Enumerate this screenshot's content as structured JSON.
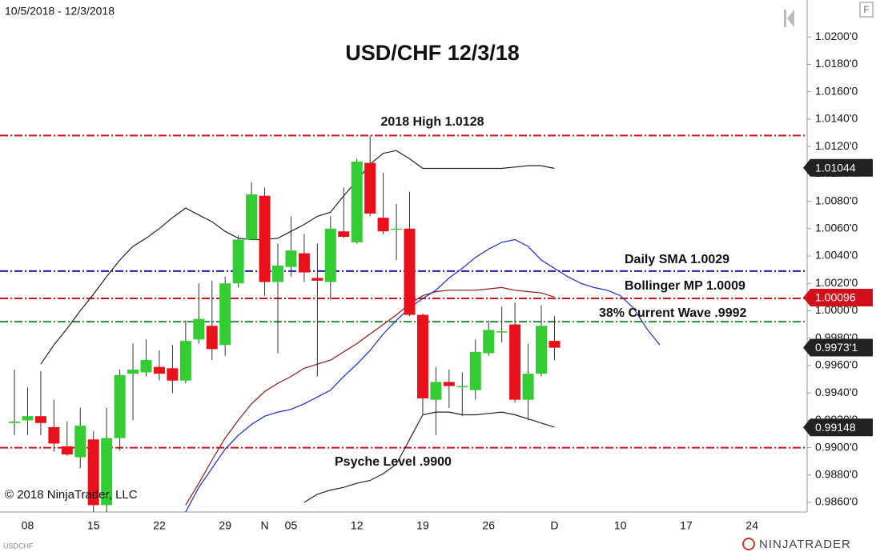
{
  "chart_data": {
    "type": "candlestick",
    "date_range": "10/5/2018 - 12/3/2018",
    "title": "USD/CHF 12/3/18",
    "copyright": "© 2018 NinjaTrader, LLC",
    "instrument": "USDCHF",
    "brand": "NINJATRADER",
    "panel_button": "F",
    "up_color": "#33cc33",
    "down_color": "#e8101a",
    "ylim": [
      0.9853,
      1.0227
    ],
    "yticks": [
      {
        "value": 0.986,
        "label": "0.9860'0"
      },
      {
        "value": 0.988,
        "label": "0.9880'0"
      },
      {
        "value": 0.99,
        "label": "0.9900'0"
      },
      {
        "value": 0.992,
        "label": "0.9920'0"
      },
      {
        "value": 0.994,
        "label": "0.9940'0"
      },
      {
        "value": 0.996,
        "label": "0.9960'0"
      },
      {
        "value": 0.998,
        "label": "0.9980'0"
      },
      {
        "value": 1.0,
        "label": "1.0000'0"
      },
      {
        "value": 1.002,
        "label": "1.0020'0"
      },
      {
        "value": 1.004,
        "label": "1.0040'0"
      },
      {
        "value": 1.006,
        "label": "1.0060'0"
      },
      {
        "value": 1.008,
        "label": "1.0080'0"
      },
      {
        "value": 1.01,
        "label": "1.0100'0"
      },
      {
        "value": 1.012,
        "label": "1.0120'0"
      },
      {
        "value": 1.014,
        "label": "1.0140'0"
      },
      {
        "value": 1.016,
        "label": "1.0160'0"
      },
      {
        "value": 1.018,
        "label": "1.0180'0"
      },
      {
        "value": 1.02,
        "label": "1.0200'0"
      }
    ],
    "categories": [
      null,
      "08",
      null,
      null,
      null,
      null,
      "15",
      null,
      null,
      null,
      null,
      "22",
      null,
      null,
      null,
      null,
      "29",
      null,
      null,
      "N",
      null,
      "05",
      null,
      null,
      null,
      null,
      "12",
      null,
      null,
      null,
      null,
      "19",
      null,
      null,
      null,
      null,
      "26",
      null,
      null,
      null,
      null,
      "D",
      null,
      null,
      null,
      null,
      "10",
      null,
      null,
      null,
      null,
      "17",
      null,
      null,
      null,
      null,
      "24",
      null,
      null,
      null,
      null
    ],
    "open": [
      0.9918,
      0.992,
      0.9923,
      0.9915,
      0.9901,
      0.9893,
      0.9906,
      0.9858,
      0.9907,
      0.9954,
      0.9955,
      0.9959,
      0.9958,
      0.9949,
      0.9979,
      0.9989,
      0.9975,
      1.002,
      1.0052,
      1.0084,
      1.0021,
      1.0032,
      1.0042,
      1.0024,
      1.0021,
      1.0058,
      1.005,
      1.0108,
      1.0068,
      1.006,
      1.006,
      0.9997,
      0.9935,
      0.9948,
      0.9945,
      0.9942,
      0.9969,
      0.9985,
      0.999,
      0.9935,
      0.9954,
      0.9978,
      null,
      null,
      null,
      null,
      null,
      null,
      null,
      null,
      null,
      null,
      null,
      null,
      null,
      null,
      null,
      null,
      null,
      null,
      null
    ],
    "high": [
      0.9957,
      0.9944,
      0.9956,
      0.9935,
      0.9919,
      0.9929,
      0.9912,
      0.9929,
      0.9957,
      0.9976,
      0.9979,
      0.9971,
      0.9975,
      0.9993,
      1.002,
      1.0022,
      1.0025,
      1.0055,
      1.0094,
      1.009,
      1.0049,
      1.0069,
      1.0056,
      1.0049,
      1.0069,
      1.009,
      1.0111,
      1.0128,
      1.0101,
      1.0078,
      1.0087,
      0.9998,
      0.9959,
      0.9957,
      0.9955,
      0.9979,
      0.9993,
      1.0003,
      1.0006,
      0.9976,
      1.0004,
      0.9996,
      null,
      null,
      null,
      null,
      null,
      null,
      null,
      null,
      null,
      null,
      null,
      null,
      null,
      null,
      null,
      null,
      null,
      null,
      null
    ],
    "low": [
      0.9909,
      0.9909,
      0.9909,
      0.9897,
      0.9894,
      0.9885,
      0.9853,
      0.9853,
      0.9898,
      0.992,
      0.9952,
      0.9949,
      0.994,
      0.9947,
      0.9976,
      0.9964,
      0.9967,
      1.0017,
      1.0052,
      1.0011,
      0.9969,
      1.0025,
      1.0021,
      0.9952,
      1.0008,
      1.0053,
      1.0049,
      1.0069,
      1.0056,
      1.0037,
      0.9996,
      0.9924,
      0.9909,
      0.9929,
      0.9923,
      0.9935,
      0.9967,
      0.9977,
      0.9933,
      0.992,
      0.9952,
      0.9964,
      null,
      null,
      null,
      null,
      null,
      null,
      null,
      null,
      null,
      null,
      null,
      null,
      null,
      null,
      null,
      null,
      null,
      null,
      null
    ],
    "close": [
      0.9919,
      0.9923,
      0.9918,
      0.9903,
      0.9895,
      0.9916,
      0.9858,
      0.9907,
      0.9953,
      0.9957,
      0.9964,
      0.9954,
      0.9949,
      0.9978,
      0.9994,
      0.9972,
      1.002,
      1.0052,
      1.0085,
      1.0021,
      1.0033,
      1.0044,
      1.0028,
      1.0022,
      1.006,
      1.0054,
      1.0109,
      1.0071,
      1.0058,
      1.006,
      0.9997,
      0.9936,
      0.9948,
      0.9945,
      0.9945,
      0.997,
      0.9986,
      0.9985,
      0.9935,
      0.9954,
      0.9989,
      0.9973,
      null,
      null,
      null,
      null,
      null,
      null,
      null,
      null,
      null,
      null,
      null,
      null,
      null,
      null,
      null,
      null,
      null,
      null,
      null
    ],
    "lines": [
      {
        "color": "#222222",
        "values": [
          null,
          null,
          0.9961,
          0.9975,
          0.9987,
          1.0,
          1.0012,
          1.0025,
          1.0037,
          1.0047,
          1.0053,
          1.006,
          1.0068,
          1.0075,
          1.007,
          1.0065,
          1.0058,
          1.0053,
          1.0052,
          1.0052,
          1.0053,
          1.0058,
          1.0063,
          1.0069,
          1.0072,
          1.0084,
          1.0095,
          1.0107,
          1.0115,
          1.0117,
          1.0111,
          1.0104,
          1.0104,
          1.0104,
          1.0104,
          1.0104,
          1.0104,
          1.0104,
          1.0105,
          1.0106,
          1.0106,
          1.0104,
          null,
          null,
          null,
          null,
          null,
          null,
          null,
          null,
          null,
          null,
          null,
          null,
          null,
          null,
          null,
          null,
          null,
          null,
          null
        ]
      },
      {
        "color": "#222222",
        "values": [
          null,
          null,
          null,
          null,
          null,
          null,
          null,
          null,
          null,
          null,
          null,
          null,
          null,
          null,
          null,
          null,
          null,
          null,
          null,
          null,
          null,
          null,
          0.986,
          0.9866,
          0.9869,
          0.9871,
          0.9874,
          0.9876,
          0.9881,
          0.9888,
          0.9906,
          0.9924,
          0.9926,
          0.9926,
          0.9924,
          0.9924,
          0.9925,
          0.9926,
          0.9924,
          0.9921,
          0.9918,
          0.9915,
          null,
          null,
          null,
          null,
          null,
          null,
          null,
          null,
          null,
          null,
          null,
          null,
          null,
          null,
          null,
          null,
          null,
          null,
          null
        ]
      },
      {
        "color": "#8b1a1a",
        "values": [
          null,
          null,
          null,
          null,
          null,
          null,
          null,
          null,
          null,
          null,
          null,
          null,
          null,
          0.9858,
          0.9874,
          0.9891,
          0.9907,
          0.992,
          0.9932,
          0.9941,
          0.9947,
          0.9952,
          0.9958,
          0.9961,
          0.9964,
          0.997,
          0.9976,
          0.9983,
          0.999,
          0.9997,
          1.0005,
          1.0011,
          1.0014,
          1.0015,
          1.0015,
          1.0015,
          1.0016,
          1.0017,
          1.0015,
          1.0014,
          1.0013,
          1.001,
          null,
          null,
          null,
          null,
          null,
          null,
          null,
          null,
          null,
          null,
          null,
          null,
          null,
          null,
          null,
          null,
          null,
          null,
          null
        ]
      },
      {
        "color": "#1a2ad0",
        "values": [
          null,
          null,
          null,
          null,
          null,
          null,
          null,
          null,
          null,
          null,
          null,
          null,
          null,
          0.9853,
          0.9871,
          0.9885,
          0.9899,
          0.9909,
          0.9917,
          0.9923,
          0.9926,
          0.9928,
          0.9932,
          0.9937,
          0.9942,
          0.9952,
          0.9961,
          0.9971,
          0.9983,
          0.9993,
          1.0002,
          1.0009,
          1.0015,
          1.0024,
          1.0031,
          1.0039,
          1.0045,
          1.005,
          1.0052,
          1.0047,
          1.0037,
          1.0031,
          1.0025,
          1.002,
          1.0017,
          1.0015,
          1.0011,
          1.0002,
          0.9987,
          0.9975,
          null,
          null,
          null,
          null,
          null,
          null,
          null,
          null,
          null,
          null,
          null
        ]
      }
    ],
    "levels": [
      {
        "label": "2018 High 1.0128",
        "value": 1.0128,
        "color": "#d0101a"
      },
      {
        "label": "Daily SMA  1.0029",
        "value": 1.0029,
        "color": "#1a1aa0"
      },
      {
        "label": "Bollinger MP 1.0009",
        "value": 1.0009,
        "color": "#d0101a"
      },
      {
        "label": "38% Current Wave .9992",
        "value": 0.9992,
        "color": "#2a8a3a"
      },
      {
        "label": "Psyche Level .9900",
        "value": 0.99,
        "color": "#d0101a"
      }
    ],
    "price_markers": [
      {
        "value": 1.01044,
        "label": "1.01044",
        "color": "#222222"
      },
      {
        "value": 1.00096,
        "label": "1.00096",
        "color": "#d0101a"
      },
      {
        "value": 0.99731,
        "label": "0.9973'1",
        "color": "#222222"
      },
      {
        "value": 0.99148,
        "label": "0.99148",
        "color": "#222222"
      }
    ]
  }
}
